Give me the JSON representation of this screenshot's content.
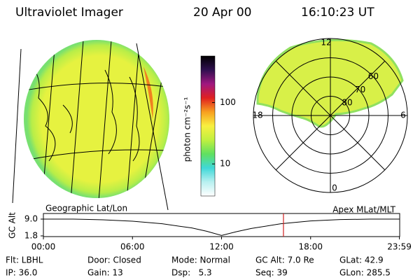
{
  "header": {
    "instrument": "Ultraviolet Imager",
    "date": "20 Apr 00",
    "time": "16:10:23 UT"
  },
  "colorbar": {
    "label": "photon cm⁻²s⁻¹",
    "log": true,
    "lim": [
      3,
      575
    ],
    "ticks": [
      10,
      100
    ],
    "colors": [
      "#ffffff",
      "#b8f0f0",
      "#40d8d8",
      "#60e060",
      "#c0f040",
      "#f8f040",
      "#f8a020",
      "#e02020",
      "#a01880",
      "#301050",
      "#000000"
    ]
  },
  "polar": {
    "rlim": [
      90,
      50
    ],
    "mlt_labels": [
      12,
      6,
      0,
      18
    ],
    "lat_rings": [
      80,
      70,
      60
    ]
  },
  "timeline": {
    "left_label": "Geographic Lat/Lon",
    "right_label": "Apex MLat/MLT",
    "ylabel": "GC Alt",
    "ylim": [
      1.5,
      11.4
    ],
    "yticks": [
      {
        "value": 9.0,
        "label": "9.0"
      },
      1.8
    ],
    "xlim": [
      0,
      24
    ],
    "xticks": [
      {
        "value": 0,
        "label": "00:00"
      },
      {
        "value": 6,
        "label": "06:00"
      },
      {
        "value": 12,
        "label": "12:00"
      },
      {
        "value": 18,
        "label": "18:00"
      },
      {
        "value": 23.98,
        "label": "23:59"
      }
    ],
    "x": [
      0,
      2,
      4,
      6,
      8,
      10,
      11,
      12,
      13,
      14,
      16,
      18,
      20,
      22,
      23.98
    ],
    "values": [
      9.0,
      9.0,
      8.7,
      8.1,
      7.0,
      5.2,
      3.8,
      2.0,
      3.6,
      5.0,
      7.0,
      8.2,
      8.8,
      9.0,
      9.0
    ],
    "current": 16.17,
    "current_color": "#d02020"
  },
  "info": {
    "rows": [
      [
        "Flt: LBHL",
        "Door: Closed",
        "Mode: Normal",
        "GC Alt: 7.0 Re",
        "GLat: 42.9"
      ],
      [
        "IP: 36.0",
        "Gain: 13",
        "Dsp:   5.3",
        "Seq: 39",
        "GLon: 285.5"
      ]
    ]
  }
}
